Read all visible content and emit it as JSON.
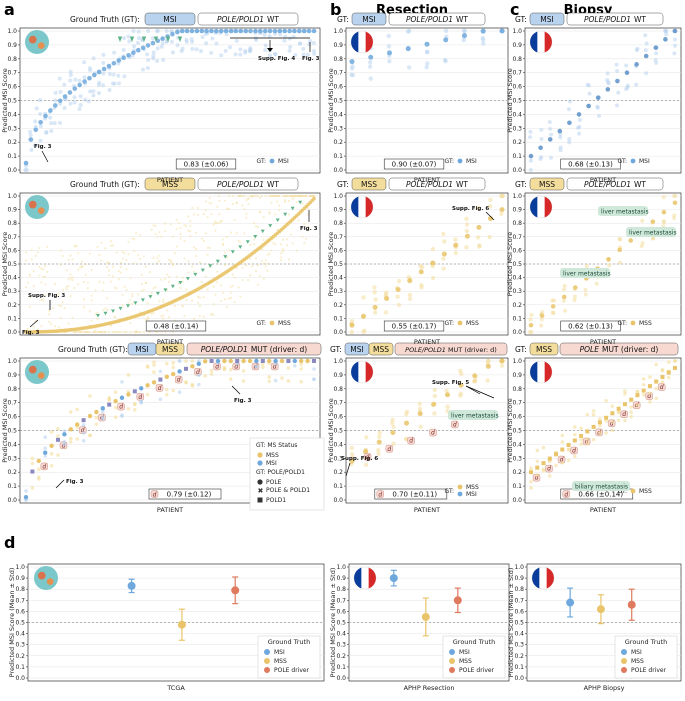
{
  "panel_labels": [
    "a",
    "b",
    "c",
    "d"
  ],
  "column_titles": {
    "resection": "Resection",
    "biopsy": "Biopsy"
  },
  "colors": {
    "msi": "#6fa8dc",
    "msi_light": "#b9d3ee",
    "mss": "#e9c46a",
    "mss_light": "#f3dd9c",
    "pole": "#e07a5f",
    "pole_bg": "#f7d9d2",
    "green": "#5fb38a",
    "met_bg": "#cfe8da",
    "chip_msi": "#b9d3ee",
    "chip_mss": "#f3dd9c",
    "chip_pole": "#f7d9d2"
  },
  "common": {
    "ylabel_a": "Predicted MSI Score",
    "xlabel_a": "PATIENT",
    "ylabel_d": "Predicted MSI Score (Mean ± Std)",
    "yticks": [
      "0.0",
      "0.1",
      "0.2",
      "0.3",
      "0.4",
      "0.5",
      "0.6",
      "0.7",
      "0.8",
      "0.9",
      "1.0"
    ]
  },
  "labels": {
    "gt": "GT:",
    "gt_full": "Ground Truth (GT):",
    "ground_truth": "Ground Truth",
    "msi": "MSI",
    "mss": "MSS",
    "polepold1": "POLE/POLD1",
    "wt": "WT",
    "mut": "MUT (driver: d)",
    "pole_driver": "POLE driver",
    "d": "d"
  },
  "annotations": {
    "fig3": "Fig. 3",
    "supp4": "Supp. Fig. 4",
    "supp3": "Supp. Fig. 3",
    "supp5": "Supp. Fig. 5",
    "supp6": "Supp. Fig. 6",
    "liver": "liver metastasis",
    "biliary": "biliary metastasis"
  },
  "legend_big": {
    "ms_status": "GT: MS Status",
    "mss": "MSS",
    "msi": "MSI",
    "pole_header": "GT: POLE/POLD1",
    "pole": "POLE",
    "pole_pold1": "POLE & POLD1",
    "pold1": "POLD1"
  },
  "chart_data": [
    {
      "id": "a1",
      "type": "scatter",
      "title": "Ground Truth (GT): MSI POLE/POLD1 WT",
      "xlabel": "PATIENT",
      "ylabel": "Predicted MSI Score",
      "ylim": [
        0,
        1
      ],
      "score": "0.83 (±0.06)",
      "legend": "MSI",
      "threshold": 0.5
    },
    {
      "id": "a2",
      "type": "scatter",
      "title": "Ground Truth (GT): MSS POLE/POLD1 WT",
      "xlabel": "PATIENT",
      "ylabel": "Predicted MSI Score",
      "ylim": [
        0,
        1
      ],
      "score": "0.48 (±0.14)",
      "legend": "MSS",
      "threshold": 0.5
    },
    {
      "id": "a3",
      "type": "scatter",
      "title": "Ground Truth (GT): MSI MSS POLE/POLD1 MUT (driver: d)",
      "xlabel": "PATIENT",
      "ylabel": "Predicted MSI Score",
      "ylim": [
        0,
        1
      ],
      "score": "0.79 (±0.12)",
      "threshold": 0.5
    },
    {
      "id": "b1",
      "type": "scatter",
      "title": "GT: MSI POLE/POLD1 WT",
      "xlabel": "PATIENT",
      "ylabel": "Predicted MSI Score",
      "ylim": [
        0,
        1
      ],
      "score": "0.90 (±0.07)",
      "legend": "MSI",
      "threshold": 0.5
    },
    {
      "id": "b2",
      "type": "scatter",
      "title": "GT: MSS POLE/POLD1 WT",
      "xlabel": "PATIENT",
      "ylabel": "Predicted MSI Score",
      "ylim": [
        0,
        1
      ],
      "score": "0.55 (±0.17)",
      "legend": "MSS",
      "threshold": 0.5
    },
    {
      "id": "b3",
      "type": "scatter",
      "title": "GT: MSI MSS POLE/POLD1 MUT (driver: d)",
      "xlabel": "PATIENT",
      "ylabel": "Predicted MSI Score",
      "ylim": [
        0,
        1
      ],
      "score": "0.70 (±0.11)",
      "legend": [
        "MSS",
        "MSI"
      ],
      "threshold": 0.5
    },
    {
      "id": "c1",
      "type": "scatter",
      "title": "GT: MSI POLE/POLD1 WT",
      "xlabel": "PATIENT",
      "ylabel": "Predicted MSI Score",
      "ylim": [
        0,
        1
      ],
      "score": "0.68 (±0.13)",
      "legend": "MSI",
      "threshold": 0.5
    },
    {
      "id": "c2",
      "type": "scatter",
      "title": "GT: MSS POLE/POLD1 WT",
      "xlabel": "PATIENT",
      "ylabel": "Predicted MSI Score",
      "ylim": [
        0,
        1
      ],
      "score": "0.62 (±0.13)",
      "legend": "MSS",
      "threshold": 0.5
    },
    {
      "id": "c3",
      "type": "scatter",
      "title": "GT: MSS POLE MUT (driver: d)",
      "xlabel": "PATIENT",
      "ylabel": "Predicted MSI Score",
      "ylim": [
        0,
        1
      ],
      "score": "0.66 (±0.14)",
      "legend": "MSS",
      "threshold": 0.5
    },
    {
      "id": "d1",
      "type": "errorbar",
      "xlabel": "TCGA",
      "ylabel": "Predicted MSI Score (Mean ± Std)",
      "ylim": [
        0,
        1
      ],
      "threshold": 0.5,
      "series": [
        {
          "name": "MSI",
          "mean": 0.83,
          "std": 0.06
        },
        {
          "name": "MSS",
          "mean": 0.48,
          "std": 0.14
        },
        {
          "name": "POLE driver",
          "mean": 0.79,
          "std": 0.12
        }
      ]
    },
    {
      "id": "d2",
      "type": "errorbar",
      "xlabel": "APHP Resection",
      "ylabel": "Predicted MSI Score (Mean ± Std)",
      "ylim": [
        0,
        1
      ],
      "threshold": 0.5,
      "series": [
        {
          "name": "MSI",
          "mean": 0.9,
          "std": 0.07
        },
        {
          "name": "MSS",
          "mean": 0.55,
          "std": 0.17
        },
        {
          "name": "POLE driver",
          "mean": 0.7,
          "std": 0.11
        }
      ]
    },
    {
      "id": "d3",
      "type": "errorbar",
      "xlabel": "APHP Biopsy",
      "ylabel": "Predicted MSI Score (Mean ± Std)",
      "ylim": [
        0,
        1
      ],
      "threshold": 0.5,
      "series": [
        {
          "name": "MSI",
          "mean": 0.68,
          "std": 0.13
        },
        {
          "name": "MSS",
          "mean": 0.62,
          "std": 0.13
        },
        {
          "name": "POLE driver",
          "mean": 0.66,
          "std": 0.14
        }
      ]
    }
  ]
}
